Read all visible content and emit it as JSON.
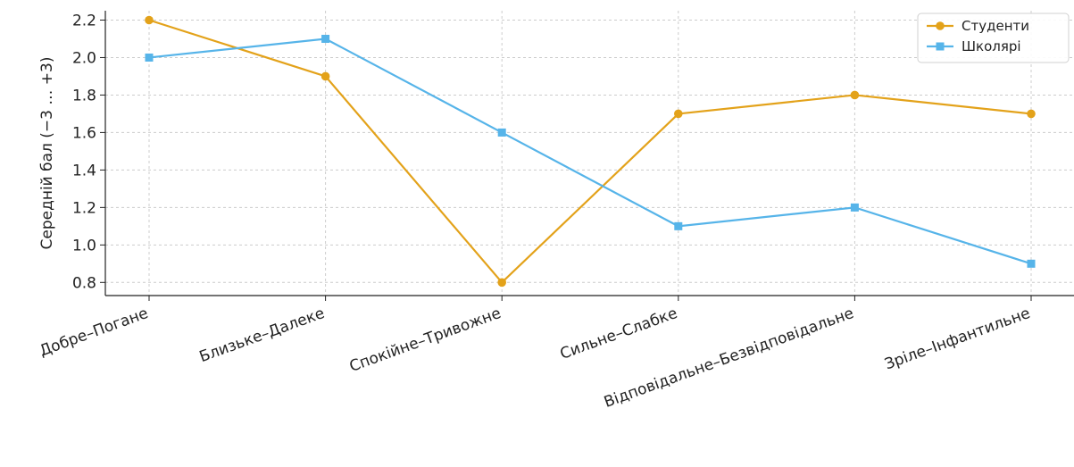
{
  "chart_data": {
    "type": "line",
    "categories": [
      "Добре–Погане",
      "Близьке–Далеке",
      "Спокійне–Тривожне",
      "Сильне–Слабке",
      "Відповідальне–Безвідповідальне",
      "Зріле–Інфантильне"
    ],
    "series": [
      {
        "name": "Студенти",
        "values": [
          2.2,
          1.9,
          0.8,
          1.7,
          1.8,
          1.7
        ],
        "color": "#E3A21A",
        "marker": "circle"
      },
      {
        "name": "Школярі",
        "values": [
          2.0,
          2.1,
          1.6,
          1.1,
          1.2,
          0.9
        ],
        "color": "#56B4E9",
        "marker": "square"
      }
    ],
    "yticks": [
      "0.8",
      "1.0",
      "1.2",
      "1.4",
      "1.6",
      "1.8",
      "2.0",
      "2.2"
    ],
    "ylim": [
      0.73,
      2.25
    ],
    "xlabel": "",
    "ylabel": "Середній бал (−3 … +3)",
    "grid": true,
    "legend_position": "top-right"
  }
}
